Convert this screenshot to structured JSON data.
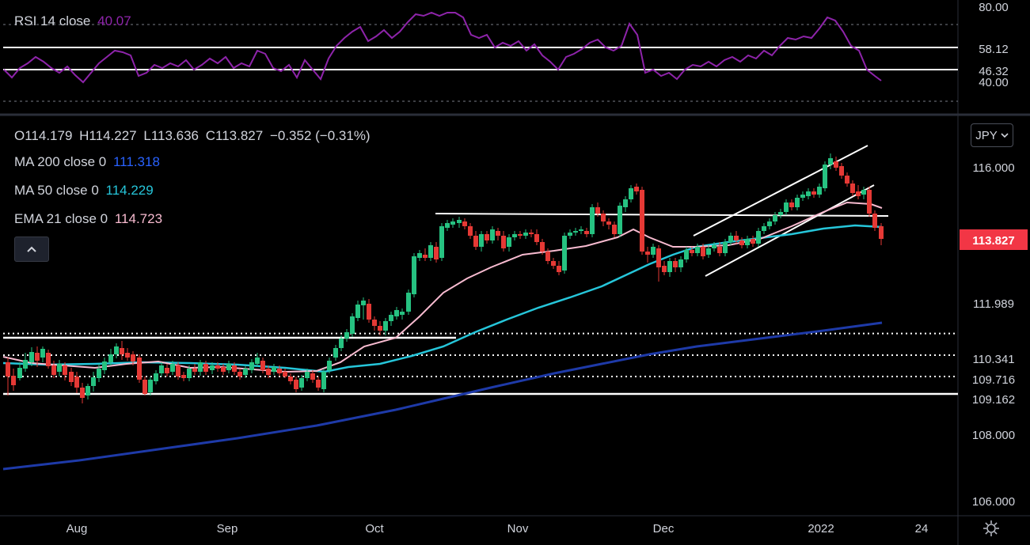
{
  "rsi_pane": {
    "legend_name": "RSI 14 close",
    "legend_value": "40.07",
    "axis_labels": [
      "80.00",
      "40.00"
    ],
    "level_labels": [
      "58.12",
      "46.32"
    ],
    "color": "#8e24aa"
  },
  "price_pane": {
    "ohlc": {
      "o": "O114.179",
      "h": "H114.227",
      "l": "L113.636",
      "c": "C113.827",
      "chg": "−0.352 (−0.31%)"
    },
    "indicators": [
      {
        "name": "MA 200 close 0",
        "value": "111.318",
        "color": "#2962ff"
      },
      {
        "name": "MA 50 close 0",
        "value": "114.229",
        "color": "#26c6da"
      },
      {
        "name": "EMA 21 close 0",
        "value": "114.723",
        "color": "#f8bbd0"
      }
    ],
    "axis_labels": [
      "116.000",
      "108.000",
      "106.000"
    ],
    "level_labels": [
      "111.989",
      "110.341",
      "109.716",
      "109.162"
    ],
    "last_price": "113.827",
    "currency": "JPY",
    "up_color": "#26c281",
    "down_color": "#e53935"
  },
  "time_axis": {
    "labels": [
      "Aug",
      "Sep",
      "Oct",
      "Nov",
      "Dec",
      "2022",
      "24"
    ]
  },
  "chart_data": {
    "type": "line",
    "instrument_currency": "JPY",
    "ohlc_last": {
      "open": 114.179,
      "high": 114.227,
      "low": 113.636,
      "close": 113.827,
      "change": -0.352,
      "change_pct": -0.31
    },
    "price_axis_ticks": [
      116.0,
      108.0,
      106.0
    ],
    "horizontal_levels": [
      111.989,
      110.341,
      109.716,
      109.162
    ],
    "rsi_levels": [
      80,
      58.12,
      46.32,
      40
    ],
    "series": [
      {
        "name": "MA 200 close 0",
        "last": 111.318
      },
      {
        "name": "MA 50 close 0",
        "last": 114.229
      },
      {
        "name": "EMA 21 close 0",
        "last": 114.723
      },
      {
        "name": "RSI 14 close",
        "last": 40.07
      }
    ],
    "x_ticks": [
      "Aug",
      "Sep",
      "Oct",
      "Nov",
      "Dec",
      "2022",
      "24"
    ],
    "grid": false
  }
}
